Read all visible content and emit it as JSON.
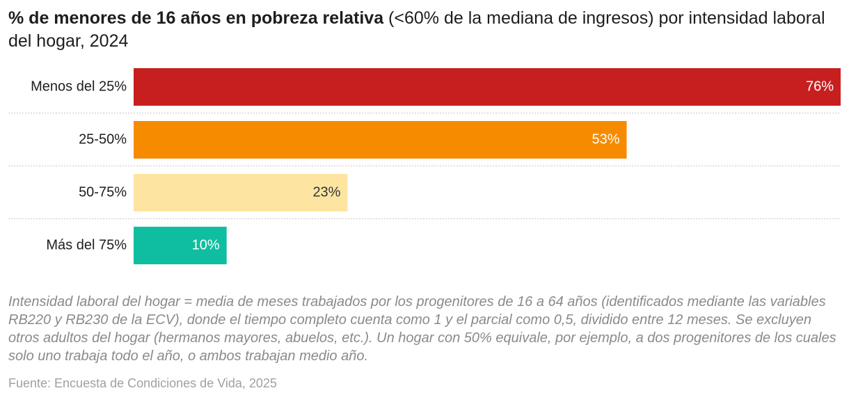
{
  "chart_data": {
    "type": "bar",
    "title_parts": [
      "% de menores de 16 años en pobreza relativa",
      " (<60% de la mediana de ingresos) por intensidad laboral del hogar, 2024"
    ],
    "categories": [
      "Menos del 25%",
      "25-50%",
      "50-75%",
      "Más del 75%"
    ],
    "values": [
      76,
      53,
      23,
      10
    ],
    "value_labels": [
      "76%",
      "53%",
      "23%",
      "10%"
    ],
    "colors": [
      "#c71f1f",
      "#f78b00",
      "#fde5a1",
      "#0fbea0"
    ],
    "note": "Intensidad laboral del hogar = media de meses trabajados por los progenitores de 16 a 64 años (identificados mediante las variables RB220 y RB230 de la ECV), donde el tiempo completo cuenta como 1 y el parcial como 0,5, dividido entre 12 meses. Se excluyen otros adultos del hogar (hermanos mayores, abuelos, etc.). Un hogar con 50% equivale, por ejemplo, a dos progenitores de los cuales solo uno trabaja todo el año, o ambos trabajan medio año.",
    "source": "Fuente: Encuesta de Condiciones de Vida, 2025"
  }
}
